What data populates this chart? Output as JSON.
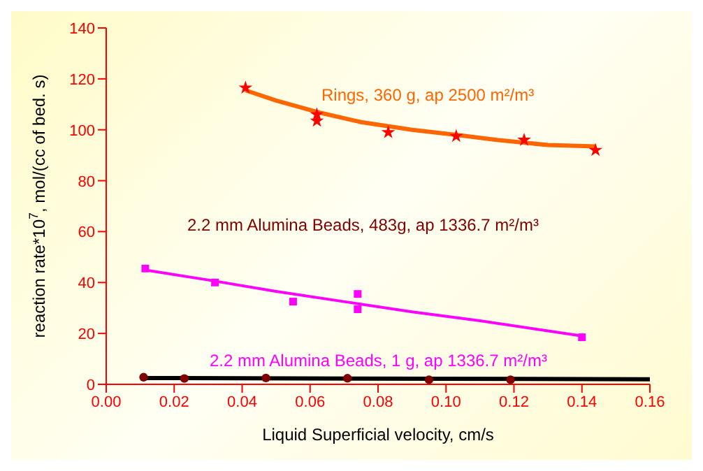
{
  "chart_data": {
    "type": "scatter",
    "xlabel": "Liquid Superficial velocity, cm/s",
    "ylabel": "reaction rate*10$^{7}$, mol/(cc of bed. s)",
    "xlim": [
      0,
      0.16
    ],
    "xticks": [
      {
        "value": 0,
        "label": "0.00"
      },
      {
        "value": 0.02,
        "label": "0.02"
      },
      {
        "value": 0.04,
        "label": "0.04"
      },
      {
        "value": 0.06,
        "label": "0.06"
      },
      {
        "value": 0.08,
        "label": "0.08"
      },
      {
        "value": 0.1,
        "label": "0.10"
      },
      {
        "value": 0.12,
        "label": "0.12"
      },
      {
        "value": 0.14,
        "label": "0.14"
      },
      {
        "value": 0.16,
        "label": "0.16"
      }
    ],
    "ylim": [
      0,
      140
    ],
    "yticks": [
      0,
      20,
      40,
      60,
      80,
      100,
      120,
      140
    ],
    "grid": false,
    "legend": false,
    "series": [
      {
        "color": "#ff0000",
        "marker": "star",
        "x": [
          0.041,
          0.062,
          0.062,
          0.083,
          0.103,
          0.123,
          0.144
        ],
        "values": [
          116.5,
          106,
          103.5,
          99,
          97.5,
          96,
          92
        ]
      },
      {
        "type": "line",
        "color": "#ff6600",
        "marker": "none",
        "x": [
          0.041,
          0.05,
          0.062,
          0.075,
          0.09,
          0.103,
          0.115,
          0.13,
          0.144
        ],
        "values": [
          115.5,
          111.5,
          107,
          103,
          100,
          98,
          96,
          94,
          93.5
        ]
      },
      {
        "color": "#ff00ff",
        "marker": "square",
        "x": [
          0.0115,
          0.032,
          0.055,
          0.074,
          0.074,
          0.14
        ],
        "values": [
          45.5,
          40,
          32.5,
          35.5,
          29.5,
          18.5
        ]
      },
      {
        "type": "line",
        "color": "#ff00ff",
        "marker": "none",
        "x": [
          0.011,
          0.03,
          0.05,
          0.07,
          0.09,
          0.11,
          0.13,
          0.14
        ],
        "values": [
          45,
          41,
          36.5,
          32.5,
          28.5,
          25,
          21,
          19
        ]
      },
      {
        "color": "#800000",
        "marker": "circle",
        "x": [
          0.011,
          0.023,
          0.047,
          0.071,
          0.095,
          0.119
        ],
        "values": [
          2.8,
          2.3,
          2.5,
          2.4,
          1.8,
          1.8
        ]
      },
      {
        "type": "line",
        "color": "#000000",
        "marker": "none",
        "x": [
          0.011,
          0.16
        ],
        "values": [
          2.5,
          2.0
        ]
      }
    ],
    "annotations": [
      "Rings, 360 g, ap 2500 m²/m³",
      "2.2 mm Alumina Beads, 483g, ap 1336.7 m²/m³",
      "2.2 mm Alumina Beads, 1 g, ap 1336.7 m²/m³"
    ]
  }
}
